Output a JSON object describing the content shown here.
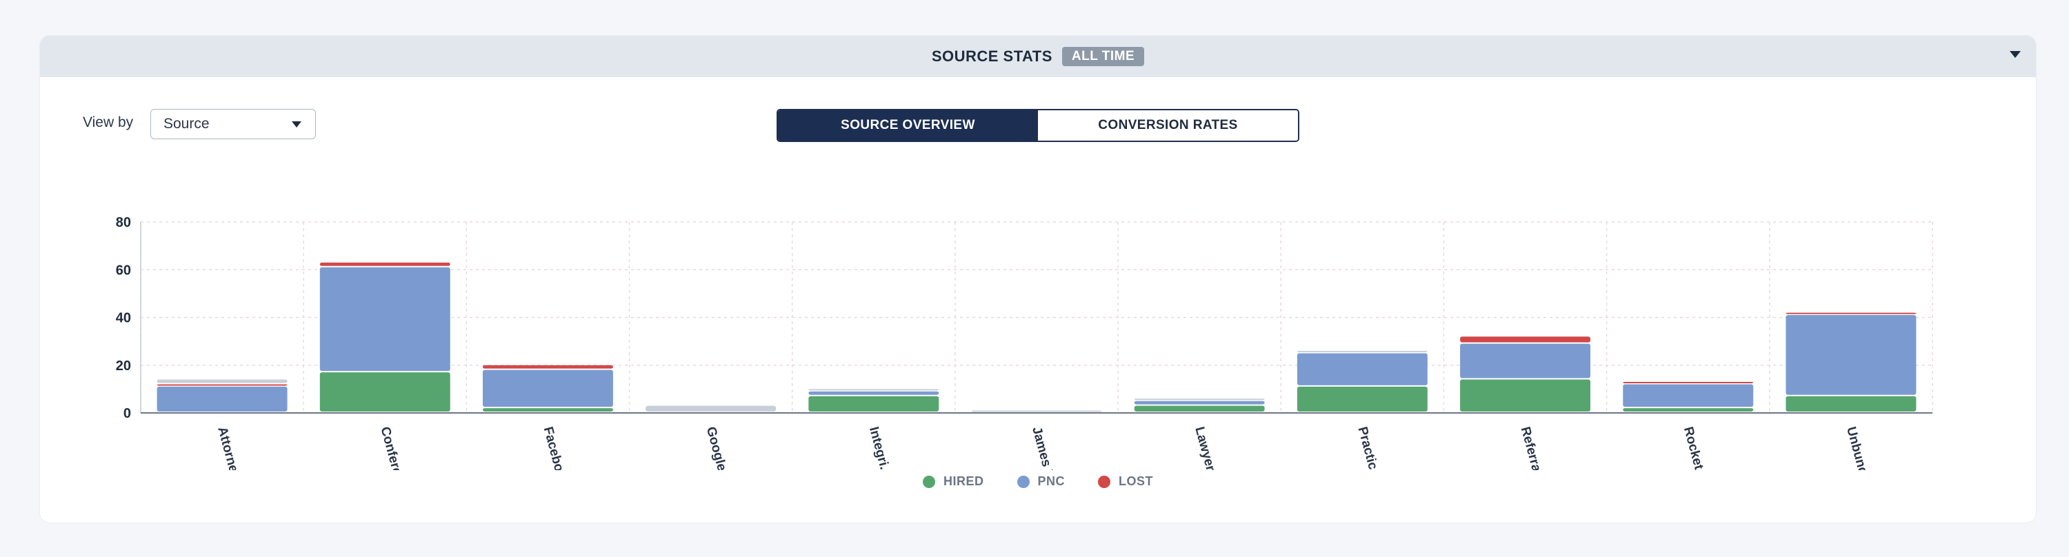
{
  "header": {
    "title": "SOURCE STATS",
    "badge": "ALL TIME"
  },
  "view_by": {
    "label": "View by",
    "value": "Source"
  },
  "tabs": [
    {
      "label": "SOURCE OVERVIEW",
      "active": true
    },
    {
      "label": "CONVERSION RATES",
      "active": false
    }
  ],
  "chart_data": {
    "type": "bar",
    "stacked": true,
    "categories": [
      "Attorne...",
      "Confere...",
      "Faceboo...",
      "Google ...",
      "Integri...",
      "James P...",
      "Lawyeri...",
      "Practic...",
      "Referra...",
      "Rocket ...",
      "Unbundl..."
    ],
    "series": [
      {
        "name": "HIRED",
        "color": "#57a56e",
        "values": [
          0,
          17,
          2,
          0,
          7,
          0,
          3,
          11,
          14,
          2,
          7
        ]
      },
      {
        "name": "PNC",
        "color": "#7b9bd0",
        "values": [
          11,
          44,
          16,
          0,
          2,
          0,
          2,
          14,
          15,
          10,
          34
        ]
      },
      {
        "name": "LOST",
        "color": "#d14848",
        "values": [
          1,
          2,
          2,
          0,
          0,
          0,
          0,
          0,
          3,
          1,
          1
        ]
      },
      {
        "name": "",
        "color": "#c9cfd8",
        "values": [
          2,
          0,
          0,
          3,
          1,
          1,
          1,
          1,
          0,
          0,
          0
        ]
      }
    ],
    "ylim": [
      0,
      80
    ],
    "yticks": [
      0,
      20,
      40,
      60,
      80
    ],
    "grid": true,
    "legend_position": "bottom-center"
  }
}
